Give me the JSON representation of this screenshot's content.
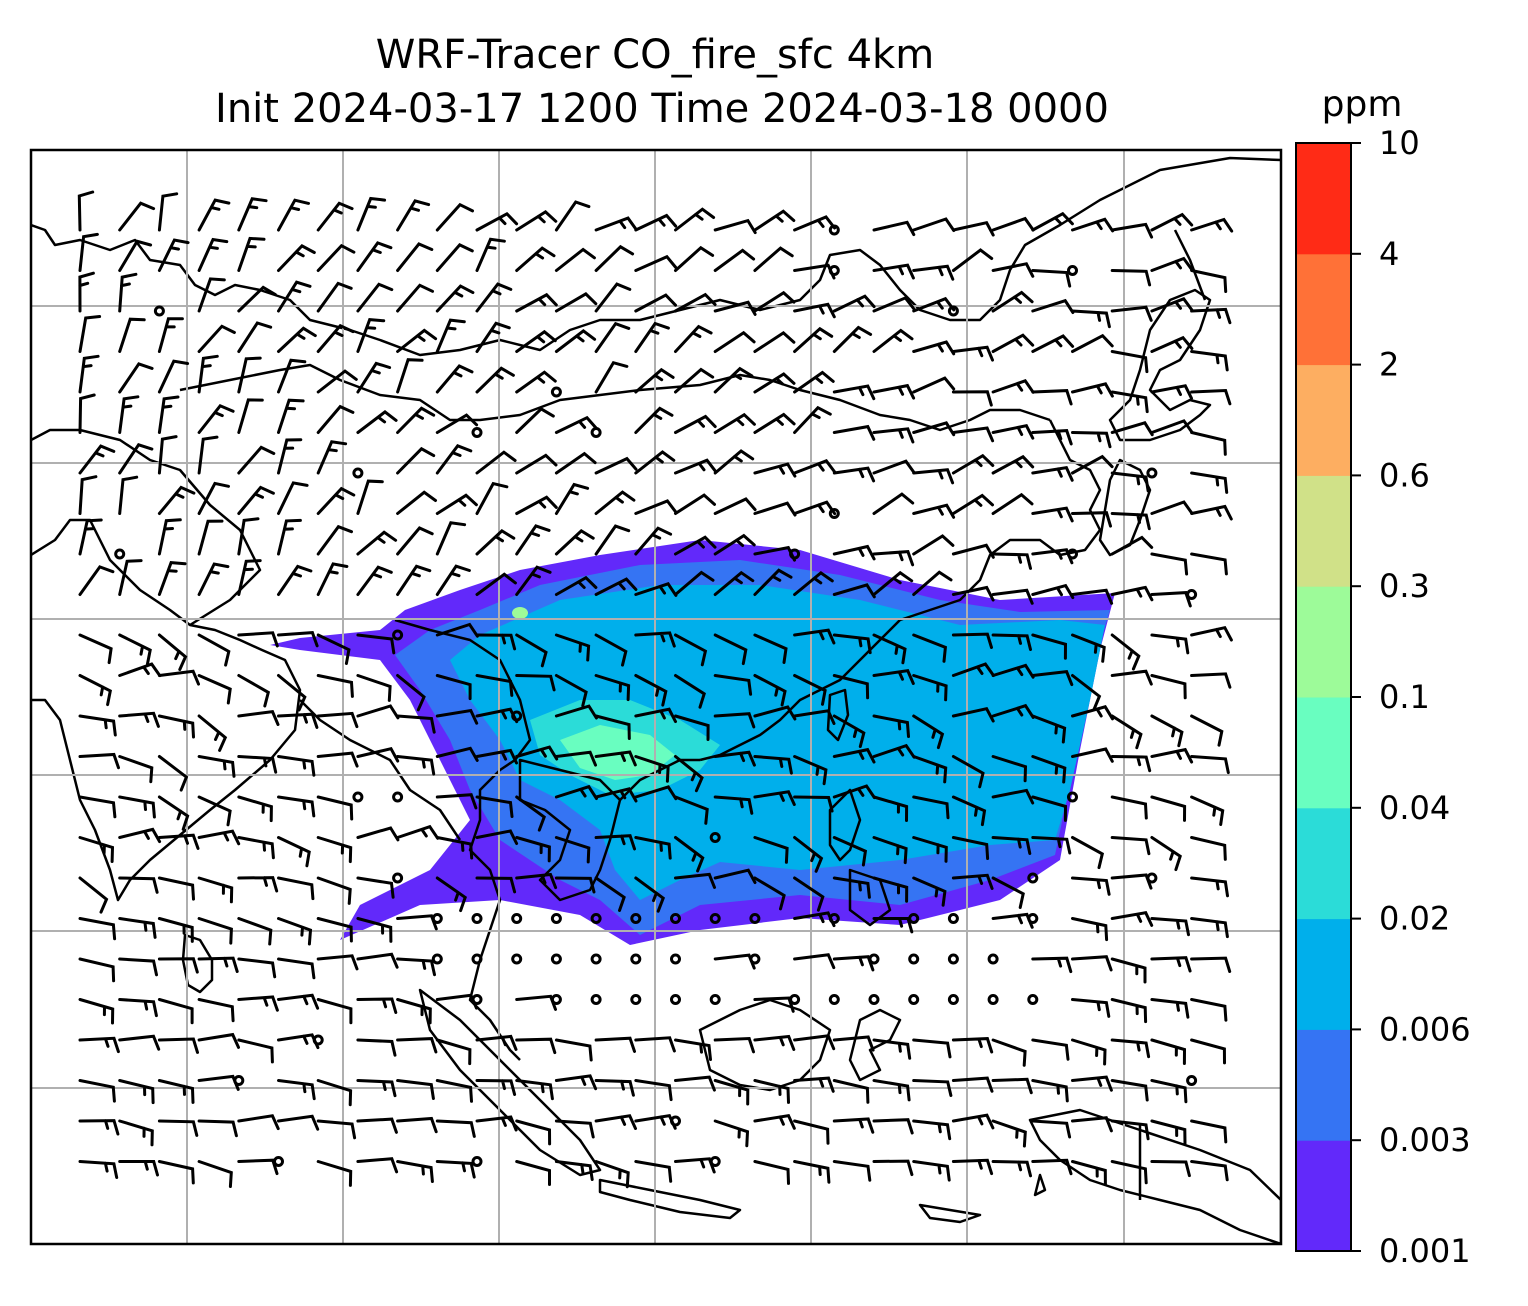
{
  "title": {
    "line1": "WRF-Tracer CO_fire_sfc 4km",
    "line2": "Init 2024-03-17 1200 Time 2024-03-18 0000"
  },
  "colorbar": {
    "label": "ppm",
    "ticks": [
      "10",
      "4",
      "2",
      "0.6",
      "0.3",
      "0.1",
      "0.04",
      "0.02",
      "0.006",
      "0.003",
      "0.001"
    ],
    "colors": [
      "#6229fa",
      "#3574f3",
      "#00afeb",
      "#2bdcd8",
      "#69fec0",
      "#9dfb99",
      "#d0e188",
      "#fdae61",
      "#ff7137",
      "#ff2b16"
    ]
  },
  "map": {
    "field_colors": {
      "level1": "#6229fa",
      "level2": "#3574f3",
      "level3": "#00afeb",
      "level4": "#2bdcd8",
      "level5": "#69fec0",
      "level6": "#9dfb99"
    },
    "gridline_color": "#b0b0b0",
    "coastline_color": "#000000",
    "wind_barbs": "black"
  }
}
